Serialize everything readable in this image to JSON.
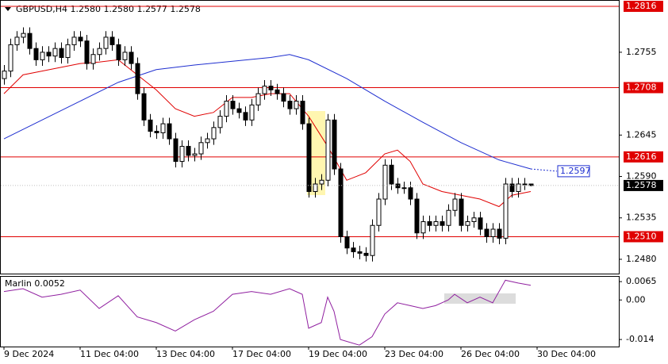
{
  "chart_data": {
    "type": "candlestick",
    "title": "GBPUSD,H4  1.2580 1.2580 1.2577 1.2578",
    "x": [
      0,
      1,
      2,
      3,
      4,
      5,
      6,
      7,
      8,
      9,
      10,
      11,
      12,
      13,
      14,
      15,
      16,
      17,
      18,
      19,
      20,
      21,
      22,
      23,
      24,
      25,
      26,
      27,
      28,
      29,
      30,
      31,
      32,
      33,
      34,
      35,
      36,
      37,
      38,
      39,
      40,
      41,
      42,
      43,
      44,
      45,
      46,
      47,
      48,
      49,
      50,
      51,
      52,
      53,
      54,
      55,
      56,
      57,
      58,
      59,
      60,
      61,
      62,
      63,
      64,
      65,
      66,
      67,
      68,
      69,
      70,
      71,
      72,
      73,
      74,
      75,
      76,
      77,
      78,
      79,
      80,
      81,
      82,
      83
    ],
    "open": [
      1.272,
      1.273,
      1.2765,
      1.2775,
      1.278,
      1.276,
      1.2745,
      1.2755,
      1.275,
      1.276,
      1.2748,
      1.2765,
      1.2775,
      1.277,
      1.274,
      1.2752,
      1.276,
      1.2775,
      1.2765,
      1.2745,
      1.2755,
      1.274,
      1.27,
      1.2665,
      1.265,
      1.2648,
      1.266,
      1.264,
      1.261,
      1.263,
      1.2618,
      1.262,
      1.2635,
      1.264,
      1.2655,
      1.267,
      1.269,
      1.268,
      1.2675,
      1.2665,
      1.2685,
      1.27,
      1.271,
      1.2705,
      1.27,
      1.269,
      1.268,
      1.269,
      1.266,
      1.257,
      1.258,
      1.2585,
      1.2665,
      1.26,
      1.251,
      1.2495,
      1.249,
      1.2488,
      1.2485,
      1.2525,
      1.256,
      1.2605,
      1.258,
      1.2575,
      1.2575,
      1.256,
      1.2515,
      1.253,
      1.2525,
      1.253,
      1.2525,
      1.2545,
      1.256,
      1.2525,
      1.253,
      1.2535,
      1.252,
      1.251,
      1.252,
      1.2508,
      1.258,
      1.257,
      1.258,
      1.258
    ],
    "high": [
      1.2738,
      1.2773,
      1.2783,
      1.2788,
      1.2788,
      1.2768,
      1.2763,
      1.2763,
      1.2768,
      1.2768,
      1.2773,
      1.2783,
      1.2783,
      1.2778,
      1.276,
      1.2768,
      1.2783,
      1.2783,
      1.2773,
      1.2763,
      1.2763,
      1.2748,
      1.2708,
      1.2673,
      1.2658,
      1.2668,
      1.2668,
      1.2648,
      1.2638,
      1.2638,
      1.2628,
      1.2643,
      1.2648,
      1.2663,
      1.2678,
      1.2698,
      1.2698,
      1.2688,
      1.2683,
      1.2693,
      1.2708,
      1.2718,
      1.2718,
      1.2713,
      1.2708,
      1.2698,
      1.2698,
      1.2698,
      1.2668,
      1.2588,
      1.2593,
      1.2673,
      1.2673,
      1.2608,
      1.2518,
      1.2503,
      1.2498,
      1.2496,
      1.2533,
      1.2568,
      1.2613,
      1.2613,
      1.2588,
      1.2583,
      1.2583,
      1.2568,
      1.2538,
      1.2538,
      1.2538,
      1.2538,
      1.2553,
      1.2568,
      1.2568,
      1.2538,
      1.2543,
      1.2543,
      1.2528,
      1.2528,
      1.2528,
      1.2588,
      1.2588,
      1.2588,
      1.2588,
      1.258
    ],
    "low": [
      1.2712,
      1.2722,
      1.2757,
      1.2767,
      1.2752,
      1.2737,
      1.2737,
      1.2742,
      1.2742,
      1.274,
      1.274,
      1.2757,
      1.2762,
      1.2732,
      1.2732,
      1.2744,
      1.2752,
      1.2757,
      1.2737,
      1.2737,
      1.2732,
      1.2692,
      1.2657,
      1.2642,
      1.264,
      1.264,
      1.2632,
      1.2602,
      1.2602,
      1.261,
      1.261,
      1.2612,
      1.2627,
      1.2632,
      1.2647,
      1.2662,
      1.2672,
      1.2667,
      1.2657,
      1.2657,
      1.2677,
      1.2692,
      1.2697,
      1.2692,
      1.2682,
      1.2672,
      1.2672,
      1.2652,
      1.2562,
      1.2562,
      1.2572,
      1.2577,
      1.2592,
      1.2502,
      1.2487,
      1.2482,
      1.248,
      1.2477,
      1.2477,
      1.2517,
      1.2552,
      1.2572,
      1.2567,
      1.2567,
      1.2552,
      1.2507,
      1.2507,
      1.2517,
      1.2517,
      1.2517,
      1.2517,
      1.2537,
      1.2517,
      1.2517,
      1.2522,
      1.2512,
      1.2502,
      1.2502,
      1.25,
      1.25,
      1.2562,
      1.2562,
      1.2572,
      1.2577
    ],
    "close": [
      1.273,
      1.2765,
      1.2775,
      1.278,
      1.276,
      1.2745,
      1.2755,
      1.275,
      1.276,
      1.2748,
      1.2765,
      1.2775,
      1.277,
      1.274,
      1.2752,
      1.276,
      1.2775,
      1.2765,
      1.2745,
      1.2755,
      1.274,
      1.27,
      1.2665,
      1.265,
      1.2648,
      1.266,
      1.264,
      1.261,
      1.263,
      1.2618,
      1.262,
      1.2635,
      1.264,
      1.2655,
      1.267,
      1.269,
      1.268,
      1.2675,
      1.2665,
      1.2685,
      1.27,
      1.271,
      1.2705,
      1.27,
      1.269,
      1.268,
      1.269,
      1.266,
      1.257,
      1.258,
      1.2585,
      1.2665,
      1.26,
      1.251,
      1.2495,
      1.249,
      1.2488,
      1.2485,
      1.2525,
      1.256,
      1.2605,
      1.258,
      1.2575,
      1.2575,
      1.256,
      1.2515,
      1.253,
      1.2525,
      1.253,
      1.2525,
      1.2545,
      1.256,
      1.2525,
      1.253,
      1.2535,
      1.252,
      1.251,
      1.252,
      1.2508,
      1.258,
      1.257,
      1.258,
      1.258,
      1.2578
    ],
    "lines": [
      {
        "color": "#e00000",
        "x": [
          0,
          3,
          6,
          9,
          12,
          15,
          18,
          21,
          24,
          27,
          30,
          33,
          36,
          39,
          42,
          45,
          48,
          51,
          54,
          57,
          60,
          62,
          64,
          66,
          69,
          72,
          75,
          78,
          80,
          83
        ],
        "values": [
          1.27,
          1.2725,
          1.273,
          1.2735,
          1.274,
          1.2742,
          1.2745,
          1.2725,
          1.2705,
          1.268,
          1.267,
          1.2675,
          1.2695,
          1.2695,
          1.27,
          1.27,
          1.267,
          1.263,
          1.2585,
          1.2595,
          1.262,
          1.2625,
          1.261,
          1.258,
          1.257,
          1.2565,
          1.256,
          1.255,
          1.2565,
          1.257
        ]
      },
      {
        "color": "#1f2fd0",
        "x": [
          0,
          6,
          12,
          18,
          24,
          30,
          36,
          42,
          45,
          48,
          54,
          60,
          66,
          72,
          78,
          83
        ],
        "values": [
          1.264,
          1.2665,
          1.269,
          1.2715,
          1.2732,
          1.2738,
          1.2743,
          1.2748,
          1.2752,
          1.2745,
          1.272,
          1.269,
          1.2662,
          1.2635,
          1.2612,
          1.26
        ]
      }
    ],
    "levels": [
      1.2816,
      1.2708,
      1.2616,
      {
        "value": 1.251,
        "label": "1.2510"
      }
    ],
    "last_price": 1.2578,
    "ma_label": 1.2597,
    "xlim": [
      -0.625,
      96.875
    ],
    "ylim": [
      1.2461,
      1.28244
    ],
    "yticks": [
      {
        "value": 1.248,
        "label": "1.2480"
      },
      1.2535,
      {
        "value": 1.259,
        "label": "1.2590"
      },
      1.2645,
      1.2755
    ],
    "xticks": [
      {
        "value": 0,
        "label": "9 Dec 2024"
      },
      {
        "value": 12,
        "label": "11 Dec 04:00"
      },
      {
        "value": 24,
        "label": "13 Dec 04:00"
      },
      {
        "value": 36,
        "label": "17 Dec 04:00"
      },
      {
        "value": 48,
        "label": "19 Dec 04:00"
      },
      {
        "value": 60,
        "label": "23 Dec 04:00"
      },
      {
        "value": 72,
        "label": "26 Dec 04:00"
      },
      {
        "value": 84,
        "label": "30 Dec 04:00"
      }
    ],
    "indicator": {
      "title": "Marlin 0.0052",
      "color": "#9020a0",
      "x": [
        0,
        3,
        6,
        9,
        12,
        15,
        18,
        21,
        24,
        27,
        30,
        33,
        36,
        39,
        42,
        45,
        47,
        48,
        50,
        51,
        52,
        53,
        56,
        58,
        60,
        62,
        64,
        66,
        68,
        70,
        71,
        73,
        75,
        77,
        79,
        81,
        83
      ],
      "values": [
        0.003,
        0.004,
        0.001,
        0.002,
        0.0035,
        -0.003,
        0.0015,
        -0.006,
        -0.008,
        -0.011,
        -0.007,
        -0.004,
        0.002,
        0.003,
        0.002,
        0.004,
        0.002,
        -0.01,
        -0.008,
        0.001,
        -0.004,
        -0.014,
        -0.016,
        -0.013,
        -0.005,
        -0.001,
        -0.002,
        -0.003,
        -0.002,
        0.0,
        0.002,
        -0.001,
        0.001,
        -0.001,
        0.007,
        0.006,
        0.0052
      ],
      "ylim": [
        -0.0165,
        0.0085
      ],
      "yticks": [
        0.0065,
        {
          "value": 0,
          "label": "0.00"
        },
        -0.014
      ]
    }
  }
}
